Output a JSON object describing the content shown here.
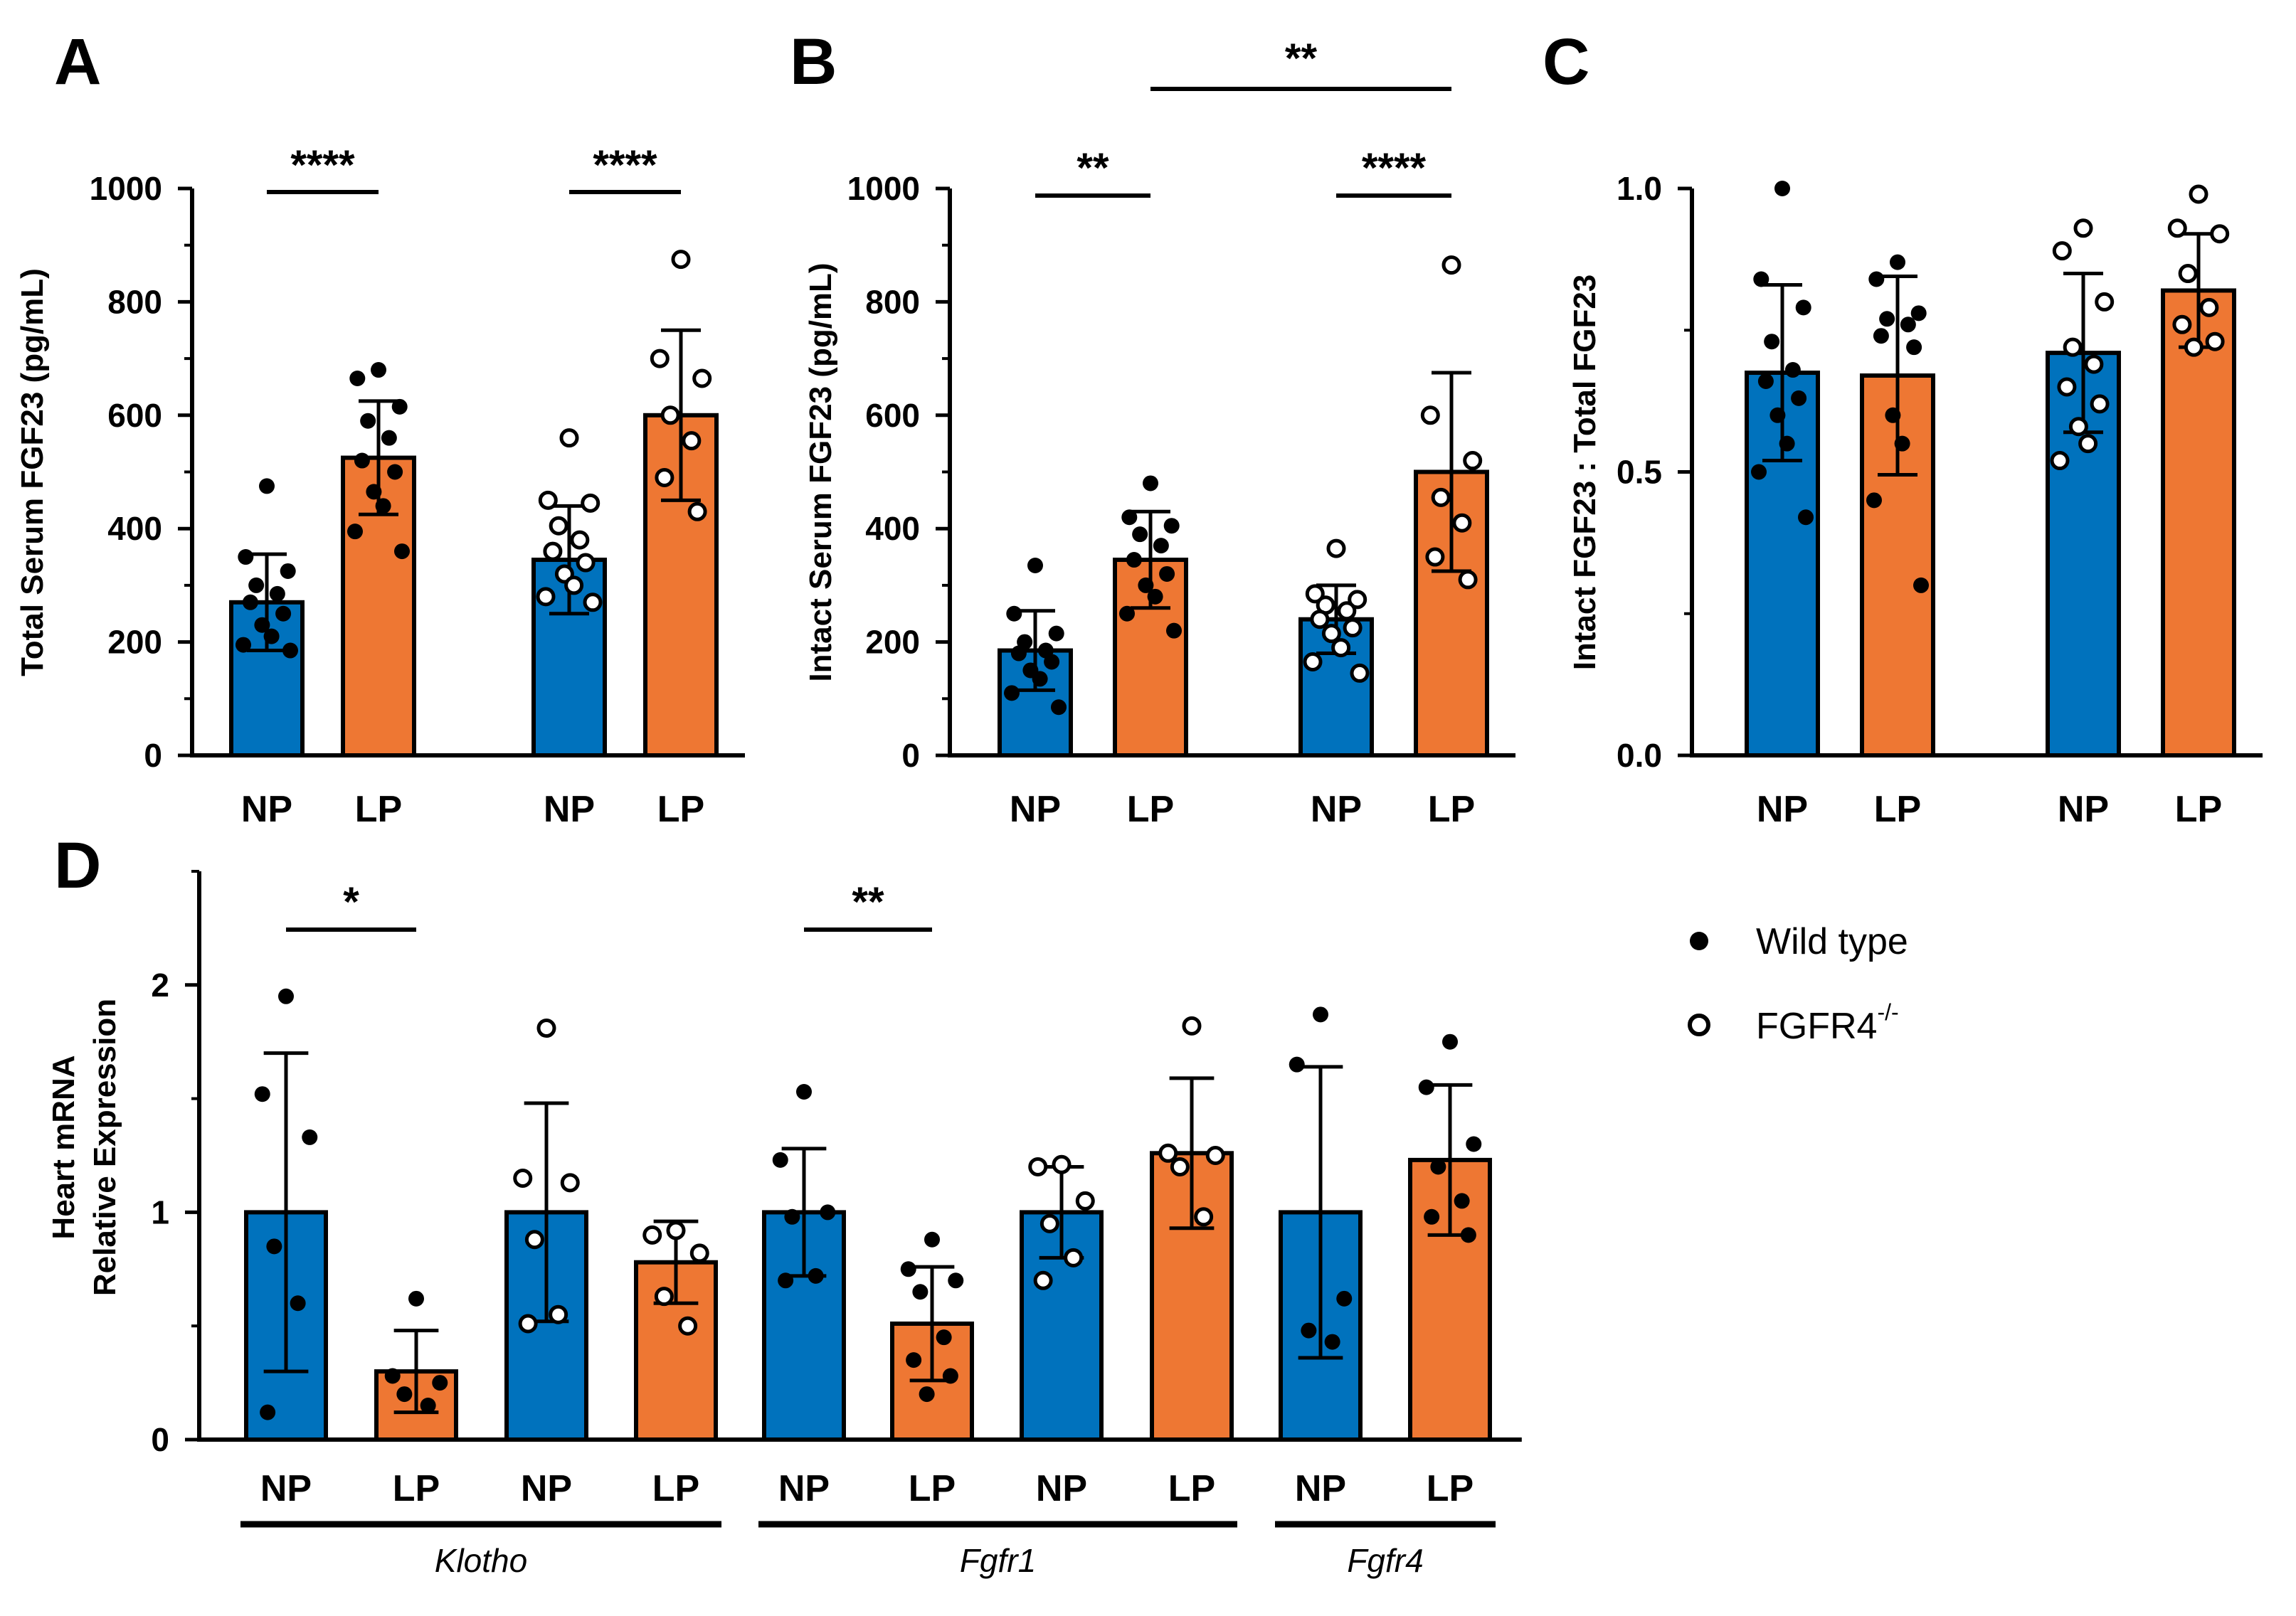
{
  "colors": {
    "np": "#0072bd",
    "lp": "#ee7733",
    "ink": "#000000"
  },
  "legend": {
    "items": [
      {
        "label": "Wild type",
        "marker": "filled-circle"
      },
      {
        "label": "FGFR4",
        "superscript": "-/-",
        "marker": "open-circle"
      }
    ]
  },
  "chart_data": [
    {
      "panel": "A",
      "type": "bar",
      "ylabel": "Total Serum FGF23 (pg/mL)",
      "ylim": [
        0,
        1000
      ],
      "yticks": [
        0,
        200,
        400,
        600,
        800,
        1000
      ],
      "ytick_labels": [
        "0",
        "200",
        "400",
        "600",
        "800",
        "1000"
      ],
      "bars": [
        {
          "label": "NP",
          "genotype": "Wild type",
          "diet": "NP",
          "mean": 270,
          "sd": 85,
          "points": [
            475,
            350,
            325,
            300,
            285,
            270,
            250,
            230,
            210,
            195,
            185
          ]
        },
        {
          "label": "LP",
          "genotype": "Wild type",
          "diet": "LP",
          "mean": 525,
          "sd": 100,
          "points": [
            680,
            665,
            615,
            590,
            560,
            520,
            500,
            465,
            440,
            395,
            360
          ]
        },
        {
          "label": "NP",
          "genotype": "FGFR4-/-",
          "diet": "NP",
          "mean": 345,
          "sd": 95,
          "points": [
            560,
            450,
            445,
            405,
            380,
            360,
            340,
            320,
            300,
            280,
            270
          ]
        },
        {
          "label": "LP",
          "genotype": "FGFR4-/-",
          "diet": "LP",
          "mean": 600,
          "sd": 150,
          "points": [
            875,
            700,
            665,
            600,
            555,
            490,
            430
          ]
        }
      ],
      "significance": [
        {
          "from": 0,
          "to": 1,
          "label": "****"
        },
        {
          "from": 2,
          "to": 3,
          "label": "****"
        }
      ]
    },
    {
      "panel": "B",
      "type": "bar",
      "ylabel": "Intact Serum FGF23 (pg/mL)",
      "ylim": [
        0,
        1000
      ],
      "yticks": [
        0,
        200,
        400,
        600,
        800,
        1000
      ],
      "ytick_labels": [
        "0",
        "200",
        "400",
        "600",
        "800",
        "1000"
      ],
      "bars": [
        {
          "label": "NP",
          "genotype": "Wild type",
          "diet": "NP",
          "mean": 185,
          "sd": 70,
          "points": [
            335,
            250,
            215,
            200,
            185,
            180,
            165,
            150,
            135,
            110,
            85
          ]
        },
        {
          "label": "LP",
          "genotype": "Wild type",
          "diet": "LP",
          "mean": 345,
          "sd": 85,
          "points": [
            480,
            420,
            405,
            390,
            370,
            345,
            320,
            300,
            280,
            250,
            220
          ]
        },
        {
          "label": "NP",
          "genotype": "FGFR4-/-",
          "diet": "NP",
          "mean": 240,
          "sd": 60,
          "points": [
            365,
            285,
            275,
            265,
            255,
            240,
            225,
            215,
            190,
            165,
            145
          ]
        },
        {
          "label": "LP",
          "genotype": "FGFR4-/-",
          "diet": "LP",
          "mean": 500,
          "sd": 175,
          "points": [
            865,
            600,
            520,
            455,
            410,
            350,
            310
          ]
        }
      ],
      "significance": [
        {
          "from": 0,
          "to": 1,
          "label": "**"
        },
        {
          "from": 2,
          "to": 3,
          "label": "****"
        },
        {
          "from": 1,
          "to": 3,
          "label": "**"
        }
      ]
    },
    {
      "panel": "C",
      "type": "bar",
      "ylabel": "Intact FGF23 : Total FGF23",
      "ylim": [
        0,
        1
      ],
      "yticks": [
        0,
        0.5,
        1
      ],
      "ytick_labels": [
        "0.0",
        "0.5",
        "1.0"
      ],
      "bars": [
        {
          "label": "NP",
          "genotype": "Wild type",
          "diet": "NP",
          "mean": 0.675,
          "sd": 0.155,
          "points": [
            1.0,
            0.84,
            0.79,
            0.73,
            0.68,
            0.66,
            0.63,
            0.6,
            0.55,
            0.5,
            0.42
          ]
        },
        {
          "label": "LP",
          "genotype": "Wild type",
          "diet": "LP",
          "mean": 0.67,
          "sd": 0.175,
          "points": [
            0.87,
            0.84,
            0.78,
            0.77,
            0.76,
            0.74,
            0.72,
            0.6,
            0.55,
            0.45,
            0.3
          ]
        },
        {
          "label": "NP",
          "genotype": "FGFR4-/-",
          "diet": "NP",
          "mean": 0.71,
          "sd": 0.14,
          "points": [
            0.93,
            0.89,
            0.8,
            0.72,
            0.69,
            0.65,
            0.62,
            0.58,
            0.55,
            0.52
          ]
        },
        {
          "label": "LP",
          "genotype": "FGFR4-/-",
          "diet": "LP",
          "mean": 0.82,
          "sd": 0.1,
          "points": [
            0.99,
            0.93,
            0.92,
            0.85,
            0.79,
            0.76,
            0.73,
            0.72
          ]
        }
      ],
      "significance": []
    },
    {
      "panel": "D",
      "type": "bar",
      "ylabel": [
        "Heart mRNA",
        "Relative Expression"
      ],
      "ylim": [
        0,
        2.5
      ],
      "yticks": [
        0,
        1,
        2
      ],
      "ytick_labels": [
        "0",
        "1",
        "2"
      ],
      "bars": [
        {
          "label": "NP",
          "gene": "Klotho",
          "genotype": "Wild type",
          "diet": "NP",
          "mean": 1.0,
          "sd": 0.7,
          "points": [
            1.95,
            1.52,
            1.33,
            0.85,
            0.6,
            0.12
          ]
        },
        {
          "label": "LP",
          "gene": "Klotho",
          "genotype": "Wild type",
          "diet": "LP",
          "mean": 0.3,
          "sd": 0.18,
          "points": [
            0.62,
            0.28,
            0.25,
            0.2,
            0.15
          ]
        },
        {
          "label": "NP",
          "gene": "Klotho",
          "genotype": "FGFR4-/-",
          "diet": "NP",
          "mean": 1.0,
          "sd": 0.48,
          "points": [
            1.81,
            1.15,
            1.13,
            0.88,
            0.55,
            0.51
          ]
        },
        {
          "label": "LP",
          "gene": "Klotho",
          "genotype": "FGFR4-/-",
          "diet": "LP",
          "mean": 0.78,
          "sd": 0.18,
          "points": [
            0.92,
            0.9,
            0.82,
            0.63,
            0.5
          ]
        },
        {
          "label": "NP",
          "gene": "Fgfr1",
          "genotype": "Wild type",
          "diet": "NP",
          "mean": 1.0,
          "sd": 0.28,
          "points": [
            1.53,
            1.23,
            1.0,
            0.98,
            0.72,
            0.7
          ]
        },
        {
          "label": "LP",
          "gene": "Fgfr1",
          "genotype": "Wild type",
          "diet": "LP",
          "mean": 0.51,
          "sd": 0.25,
          "points": [
            0.88,
            0.75,
            0.7,
            0.65,
            0.45,
            0.35,
            0.28,
            0.2
          ]
        },
        {
          "label": "NP",
          "gene": "Fgfr1",
          "genotype": "FGFR4-/-",
          "diet": "NP",
          "mean": 1.0,
          "sd": 0.2,
          "points": [
            1.21,
            1.2,
            1.05,
            0.95,
            0.8,
            0.7
          ]
        },
        {
          "label": "LP",
          "gene": "Fgfr1",
          "genotype": "FGFR4-/-",
          "diet": "LP",
          "mean": 1.26,
          "sd": 0.33,
          "points": [
            1.82,
            1.26,
            1.25,
            1.2,
            0.98
          ]
        },
        {
          "label": "NP",
          "gene": "Fgfr4",
          "genotype": "Wild type",
          "diet": "NP",
          "mean": 1.0,
          "sd": 0.64,
          "points": [
            1.87,
            1.65,
            0.62,
            0.48,
            0.43
          ]
        },
        {
          "label": "LP",
          "gene": "Fgfr4",
          "genotype": "Wild type",
          "diet": "LP",
          "mean": 1.23,
          "sd": 0.33,
          "points": [
            1.75,
            1.55,
            1.3,
            1.2,
            1.05,
            0.98,
            0.9
          ]
        }
      ],
      "significance": [
        {
          "from": 0,
          "to": 1,
          "label": "*"
        },
        {
          "from": 4,
          "to": 5,
          "label": "**"
        }
      ],
      "gene_groups": [
        {
          "label": "Klotho",
          "from": 0,
          "to": 3
        },
        {
          "label": "Fgfr1",
          "from": 4,
          "to": 7
        },
        {
          "label": "Fgfr4",
          "from": 8,
          "to": 9
        }
      ]
    }
  ]
}
